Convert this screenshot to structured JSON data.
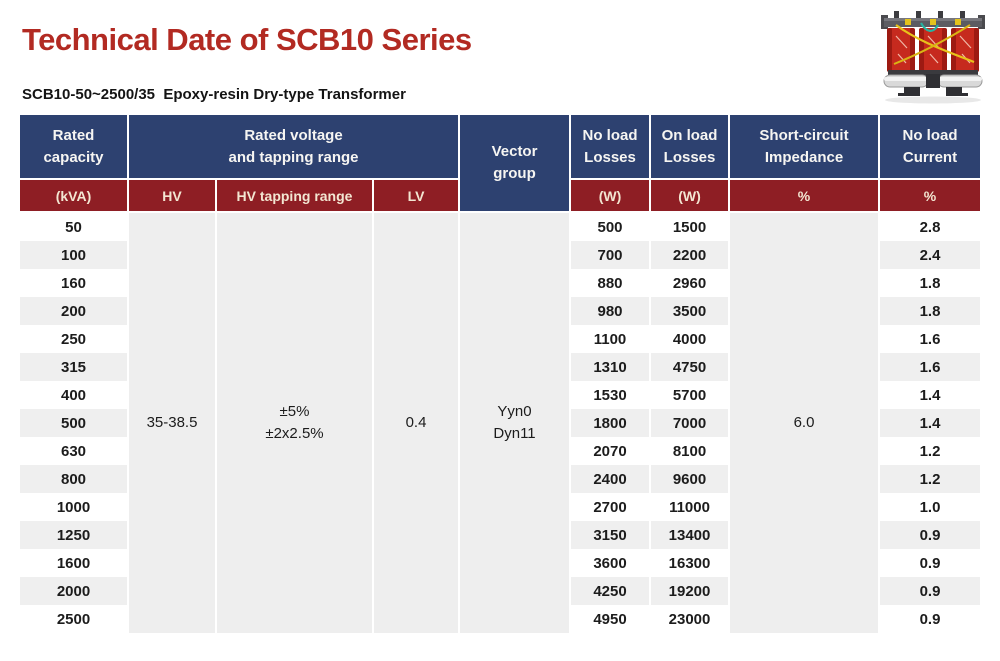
{
  "page": {
    "title": "Technical Date of SCB10 Series",
    "subtitle": "SCB10-50~2500/35  Epoxy-resin Dry-type Transformer"
  },
  "colors": {
    "title_red": "#b22a22",
    "header_blue": "#2d4170",
    "header_dark_red": "#8e1e24",
    "row_alt_gray": "#efefef",
    "merged_cell_gray": "#eeeeee"
  },
  "table": {
    "header": {
      "rated_capacity": [
        "Rated",
        "capacity"
      ],
      "rated_capacity_unit": "(kVA)",
      "rated_voltage_group": [
        "Rated voltage",
        "and tapping range"
      ],
      "hv": "HV",
      "hv_tapping_range": "HV tapping range",
      "lv": "LV",
      "vector_group": [
        "Vector",
        "group"
      ],
      "no_load_losses": [
        "No load",
        "Losses"
      ],
      "no_load_losses_unit": "(W)",
      "on_load_losses": [
        "On load",
        "Losses"
      ],
      "on_load_losses_unit": "(W)",
      "short_circuit_impedance": [
        "Short-circuit",
        "Impedance"
      ],
      "short_circuit_impedance_unit": "%",
      "no_load_current": [
        "No load",
        "Current"
      ],
      "no_load_current_unit": "%"
    },
    "merged": {
      "hv": "35-38.5",
      "hv_tapping": [
        "±5%",
        "±2x2.5%"
      ],
      "lv": "0.4",
      "vector_group": [
        "Yyn0",
        "Dyn11"
      ],
      "short_circuit_impedance": "6.0"
    },
    "rows": [
      {
        "kva": "50",
        "no_load_losses": "500",
        "on_load_losses": "1500",
        "no_load_current": "2.8"
      },
      {
        "kva": "100",
        "no_load_losses": "700",
        "on_load_losses": "2200",
        "no_load_current": "2.4"
      },
      {
        "kva": "160",
        "no_load_losses": "880",
        "on_load_losses": "2960",
        "no_load_current": "1.8"
      },
      {
        "kva": "200",
        "no_load_losses": "980",
        "on_load_losses": "3500",
        "no_load_current": "1.8"
      },
      {
        "kva": "250",
        "no_load_losses": "1100",
        "on_load_losses": "4000",
        "no_load_current": "1.6"
      },
      {
        "kva": "315",
        "no_load_losses": "1310",
        "on_load_losses": "4750",
        "no_load_current": "1.6"
      },
      {
        "kva": "400",
        "no_load_losses": "1530",
        "on_load_losses": "5700",
        "no_load_current": "1.4"
      },
      {
        "kva": "500",
        "no_load_losses": "1800",
        "on_load_losses": "7000",
        "no_load_current": "1.4"
      },
      {
        "kva": "630",
        "no_load_losses": "2070",
        "on_load_losses": "8100",
        "no_load_current": "1.2"
      },
      {
        "kva": "800",
        "no_load_losses": "2400",
        "on_load_losses": "9600",
        "no_load_current": "1.2"
      },
      {
        "kva": "1000",
        "no_load_losses": "2700",
        "on_load_losses": "11000",
        "no_load_current": "1.0"
      },
      {
        "kva": "1250",
        "no_load_losses": "3150",
        "on_load_losses": "13400",
        "no_load_current": "0.9"
      },
      {
        "kva": "1600",
        "no_load_losses": "3600",
        "on_load_losses": "16300",
        "no_load_current": "0.9"
      },
      {
        "kva": "2000",
        "no_load_losses": "4250",
        "on_load_losses": "19200",
        "no_load_current": "0.9"
      },
      {
        "kva": "2500",
        "no_load_losses": "4950",
        "on_load_losses": "23000",
        "no_load_current": "0.9"
      }
    ]
  }
}
